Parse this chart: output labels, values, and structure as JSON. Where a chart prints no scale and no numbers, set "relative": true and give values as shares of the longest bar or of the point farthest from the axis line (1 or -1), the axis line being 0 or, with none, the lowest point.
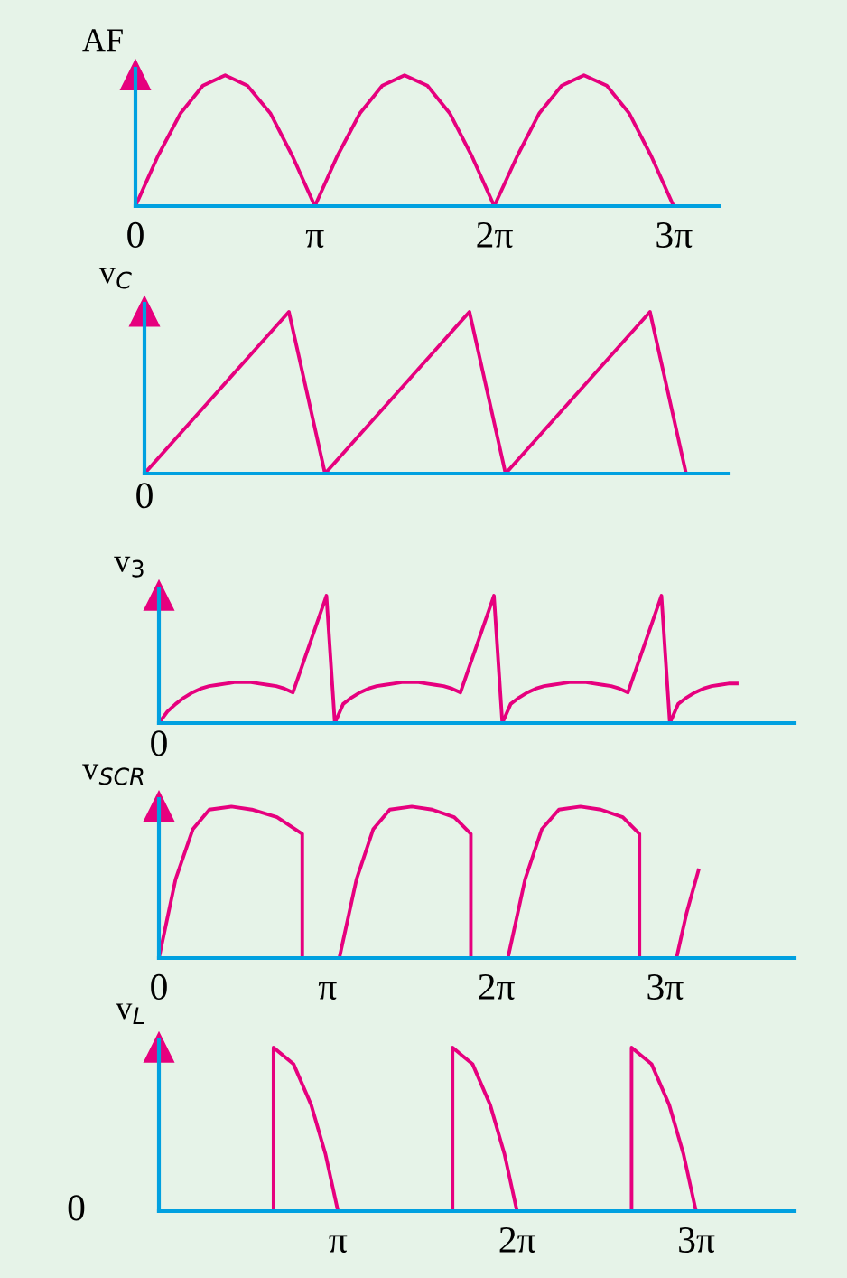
{
  "chart_data": [
    {
      "type": "line",
      "ylabel": "AF",
      "relative": true,
      "color": "#e6007e",
      "xlim": [
        0,
        10.21
      ],
      "xticks": [
        {
          "value": 0,
          "label": "0"
        },
        {
          "value": 3.1416,
          "label": "π"
        },
        {
          "value": 6.2832,
          "label": "2π"
        },
        {
          "value": 9.4248,
          "label": "3π"
        }
      ],
      "x": [
        0,
        0.39,
        0.79,
        1.18,
        1.57,
        1.96,
        2.36,
        2.75,
        3.14,
        3.53,
        3.93,
        4.32,
        4.71,
        5.11,
        5.5,
        5.89,
        6.28,
        6.68,
        7.07,
        7.46,
        7.85,
        8.25,
        8.64,
        9.03,
        9.42
      ],
      "values": [
        0,
        0.38,
        0.71,
        0.92,
        1,
        0.92,
        0.71,
        0.38,
        0,
        0.38,
        0.71,
        0.92,
        1,
        0.92,
        0.71,
        0.38,
        0,
        0.38,
        0.71,
        0.92,
        1,
        0.92,
        0.71,
        0.38,
        0
      ]
    },
    {
      "type": "line",
      "ylabel": "v$_{C}$",
      "relative": true,
      "color": "#e6007e",
      "annotations": [
        "0"
      ],
      "categories": [
        null,
        null,
        null,
        null,
        null,
        null,
        null,
        null,
        null,
        null,
        null,
        null,
        null,
        null,
        null,
        null
      ],
      "values": [
        0,
        0.25,
        0.5,
        0.75,
        1,
        0,
        0.25,
        0.5,
        0.75,
        1,
        0,
        0.25,
        0.5,
        0.75,
        1,
        0
      ]
    },
    {
      "type": "line",
      "ylabel": "v$_{3}$",
      "relative": true,
      "color": "#e6007e",
      "annotations": [
        "0"
      ],
      "categories": [
        null,
        null,
        null,
        null,
        null,
        null,
        null,
        null,
        null,
        null,
        null,
        null,
        null,
        null,
        null,
        null,
        null,
        null,
        null,
        null,
        null,
        null,
        null,
        null,
        null,
        null,
        null,
        null,
        null,
        null,
        null,
        null,
        null,
        null,
        null,
        null,
        null,
        null,
        null,
        null,
        null,
        null,
        null,
        null,
        null,
        null,
        null,
        null,
        null,
        null,
        null,
        null,
        null,
        null,
        null,
        null,
        null,
        null,
        null,
        null,
        null,
        null,
        null,
        null,
        null,
        null,
        null,
        null,
        null,
        null
      ],
      "values": [
        0,
        0.09,
        0.15,
        0.2,
        0.24,
        0.27,
        0.29,
        0.3,
        0.31,
        0.32,
        0.32,
        0.32,
        0.31,
        0.3,
        0.29,
        0.27,
        0.24,
        0.43,
        0.62,
        0.81,
        1,
        0,
        0.15,
        0.2,
        0.24,
        0.27,
        0.29,
        0.3,
        0.31,
        0.32,
        0.32,
        0.32,
        0.31,
        0.3,
        0.29,
        0.27,
        0.24,
        0.43,
        0.62,
        0.81,
        1,
        0,
        0.15,
        0.2,
        0.24,
        0.27,
        0.29,
        0.3,
        0.31,
        0.32,
        0.32,
        0.32,
        0.31,
        0.3,
        0.29,
        0.27,
        0.24,
        0.43,
        0.62,
        0.81,
        1,
        0,
        0.15,
        0.2,
        0.24,
        0.27,
        0.29,
        0.3,
        0.31,
        0.31
      ]
    },
    {
      "type": "line",
      "ylabel": "v$_{SCR}$",
      "relative": true,
      "color": "#e6007e",
      "xlim": [
        0,
        11.84
      ],
      "xticks": [
        {
          "value": 0,
          "label": "0"
        },
        {
          "value": 3.1416,
          "label": "π"
        },
        {
          "value": 6.2832,
          "label": "2π"
        },
        {
          "value": 9.4248,
          "label": "3π"
        }
      ],
      "x": [
        0,
        0.31,
        0.63,
        0.94,
        1.35,
        1.73,
        2.2,
        2.67,
        2.67,
        3.36,
        3.68,
        3.99,
        4.3,
        4.71,
        5.09,
        5.5,
        5.81,
        5.81,
        6.5,
        6.82,
        7.13,
        7.45,
        7.85,
        8.23,
        8.64,
        8.95,
        8.95,
        9.64,
        9.83,
        10.05
      ],
      "values": [
        0,
        0.52,
        0.85,
        0.98,
        1,
        0.98,
        0.93,
        0.82,
        0,
        0,
        0.52,
        0.85,
        0.98,
        1,
        0.98,
        0.93,
        0.82,
        0,
        0,
        0.52,
        0.85,
        0.98,
        1,
        0.98,
        0.93,
        0.82,
        0,
        0,
        0.3,
        0.58
      ]
    },
    {
      "type": "line",
      "ylabel": "v$_{L}$",
      "relative": true,
      "color": "#e6007e",
      "xlim": [
        0,
        11.15
      ],
      "xticks": [
        {
          "value": 3.1416,
          "label": "π"
        },
        {
          "value": 6.2832,
          "label": "2π"
        },
        {
          "value": 9.4248,
          "label": "3π"
        }
      ],
      "annotations": [
        "0"
      ],
      "x": [
        2.01,
        2.01,
        2.36,
        2.67,
        2.92,
        3.14,
        4.08,
        5.15,
        5.15,
        5.5,
        5.81,
        6.06,
        6.28,
        7.23,
        8.29,
        8.29,
        8.64,
        8.95,
        9.2,
        9.42
      ],
      "values": [
        0,
        1,
        0.9,
        0.65,
        0.35,
        0,
        null,
        0,
        1,
        0.9,
        0.65,
        0.35,
        0,
        null,
        0,
        1,
        0.9,
        0.65,
        0.35,
        0
      ]
    }
  ]
}
